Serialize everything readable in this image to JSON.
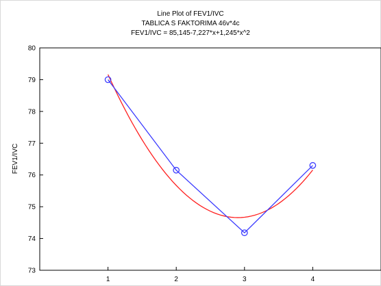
{
  "chart_data": {
    "type": "line",
    "title": "Line Plot of FEV1/IVC",
    "subtitle": "TABLICA S FAKTORIMA 46v*4c",
    "equation": "FEV1/IVC = 85,145-7,227*x+1,245*x^2",
    "xlabel": "",
    "ylabel": "FEV1/IVC",
    "x": [
      1,
      2,
      3,
      4
    ],
    "x_tick_labels": [
      "1",
      "2",
      "3",
      "4"
    ],
    "xlim": [
      0,
      5
    ],
    "ylim": [
      73,
      80
    ],
    "y_ticks": [
      73,
      74,
      75,
      76,
      77,
      78,
      79,
      80
    ],
    "grid": false,
    "series": [
      {
        "values": [
          79.0,
          76.15,
          74.18,
          76.3
        ],
        "color": "#3b3bff",
        "marker": "circle"
      }
    ],
    "fit_curve": {
      "color": "#ff2020",
      "coefficients": [
        85.145,
        -7.227,
        1.245
      ],
      "x_range": [
        1,
        4
      ]
    }
  }
}
